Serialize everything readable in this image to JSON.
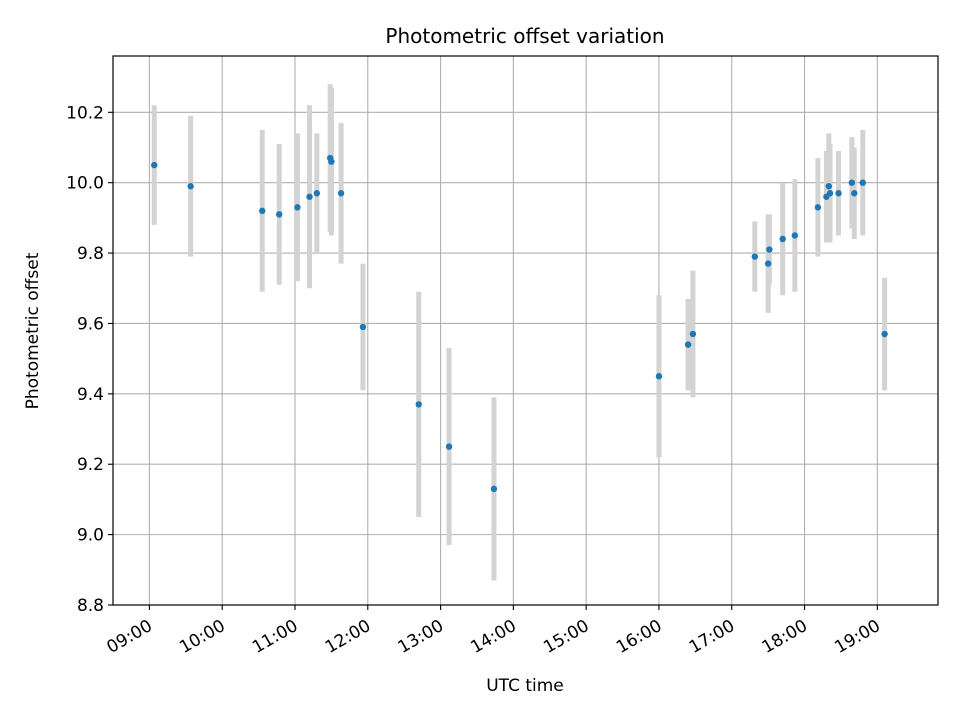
{
  "chart_data": {
    "type": "scatter",
    "title": "Photometric offset variation",
    "xlabel": "UTC time",
    "ylabel": "Photometric offset",
    "xlim": [
      "08:30",
      "19:50"
    ],
    "ylim": [
      8.8,
      10.36
    ],
    "grid": true,
    "x_ticks": [
      "09:00",
      "10:00",
      "11:00",
      "12:00",
      "13:00",
      "14:00",
      "15:00",
      "16:00",
      "17:00",
      "18:00",
      "19:00"
    ],
    "y_ticks": [
      "8.8",
      "9.0",
      "9.2",
      "9.4",
      "9.6",
      "9.8",
      "10.0",
      "10.2"
    ],
    "series": [
      {
        "marker_color": "#1f77b4",
        "errorbar_color": "#d3d3d3",
        "points": [
          {
            "x": "09:04",
            "y": 10.05,
            "yerr": 0.17
          },
          {
            "x": "09:34",
            "y": 9.99,
            "yerr": 0.2
          },
          {
            "x": "10:33",
            "y": 9.92,
            "yerr": 0.23
          },
          {
            "x": "10:47",
            "y": 9.91,
            "yerr": 0.2
          },
          {
            "x": "11:02",
            "y": 9.93,
            "yerr": 0.21
          },
          {
            "x": "11:12",
            "y": 9.96,
            "yerr": 0.26
          },
          {
            "x": "11:18",
            "y": 9.97,
            "yerr": 0.17
          },
          {
            "x": "11:29",
            "y": 10.07,
            "yerr": 0.21
          },
          {
            "x": "11:30",
            "y": 10.06,
            "yerr": 0.21
          },
          {
            "x": "11:38",
            "y": 9.97,
            "yerr": 0.2
          },
          {
            "x": "11:56",
            "y": 9.59,
            "yerr": 0.18
          },
          {
            "x": "12:42",
            "y": 9.37,
            "yerr": 0.32
          },
          {
            "x": "13:07",
            "y": 9.25,
            "yerr": 0.28
          },
          {
            "x": "13:44",
            "y": 9.13,
            "yerr": 0.26
          },
          {
            "x": "16:00",
            "y": 9.45,
            "yerr": 0.23
          },
          {
            "x": "16:24",
            "y": 9.54,
            "yerr": 0.13
          },
          {
            "x": "16:28",
            "y": 9.57,
            "yerr": 0.18
          },
          {
            "x": "17:19",
            "y": 9.79,
            "yerr": 0.1
          },
          {
            "x": "17:30",
            "y": 9.77,
            "yerr": 0.14
          },
          {
            "x": "17:31",
            "y": 9.81,
            "yerr": 0.1
          },
          {
            "x": "17:42",
            "y": 9.84,
            "yerr": 0.16
          },
          {
            "x": "17:52",
            "y": 9.85,
            "yerr": 0.16
          },
          {
            "x": "18:11",
            "y": 9.93,
            "yerr": 0.14
          },
          {
            "x": "18:18",
            "y": 9.96,
            "yerr": 0.13
          },
          {
            "x": "18:20",
            "y": 9.99,
            "yerr": 0.15
          },
          {
            "x": "18:21",
            "y": 9.97,
            "yerr": 0.14
          },
          {
            "x": "18:28",
            "y": 9.97,
            "yerr": 0.12
          },
          {
            "x": "18:39",
            "y": 10.0,
            "yerr": 0.13
          },
          {
            "x": "18:41",
            "y": 9.97,
            "yerr": 0.13
          },
          {
            "x": "18:48",
            "y": 10.0,
            "yerr": 0.15
          },
          {
            "x": "19:06",
            "y": 9.57,
            "yerr": 0.16
          }
        ]
      }
    ]
  }
}
